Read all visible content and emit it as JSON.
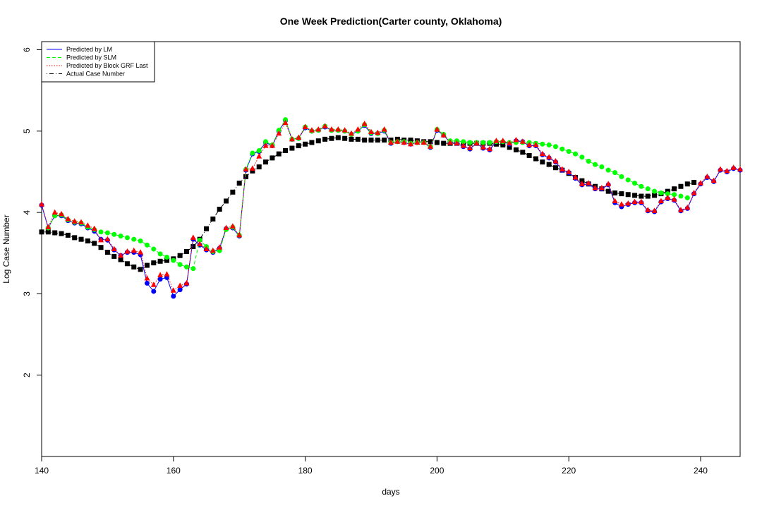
{
  "chart_data": {
    "type": "line",
    "title": "One Week Prediction(Carter county, Oklahoma)",
    "xlabel": "days",
    "ylabel": "Log Case Number",
    "xlim": [
      140,
      246
    ],
    "ylim": [
      1.0,
      6.1
    ],
    "xticks": [
      140,
      160,
      180,
      200,
      220,
      240
    ],
    "yticks": [
      2,
      3,
      4,
      5,
      6
    ],
    "grid": false,
    "legend_position": "top-left",
    "legend": [
      {
        "label": "Predicted by LM",
        "color": "#0000ff",
        "dash": "solid"
      },
      {
        "label": "Predicted by SLM",
        "color": "#00ff00",
        "dash": "dashed"
      },
      {
        "label": "Predicted by Block GRF Last",
        "color": "#ff0000",
        "dash": "dotted"
      },
      {
        "label": "Actual Case Number",
        "color": "#000000",
        "dash": "dotdash"
      }
    ],
    "series": [
      {
        "name": "Actual Case Number",
        "color": "#000000",
        "marker": "square",
        "x": [
          140,
          141,
          142,
          143,
          144,
          145,
          146,
          147,
          148,
          149,
          150,
          151,
          152,
          153,
          154,
          155,
          156,
          157,
          158,
          159,
          160,
          161,
          162,
          163,
          164,
          165,
          166,
          167,
          168,
          169,
          170,
          171,
          172,
          173,
          174,
          175,
          176,
          177,
          178,
          179,
          180,
          181,
          182,
          183,
          184,
          185,
          186,
          187,
          188,
          189,
          190,
          191,
          192,
          193,
          194,
          195,
          196,
          197,
          198,
          199,
          200,
          201,
          202,
          203,
          204,
          205,
          206,
          207,
          208,
          209,
          210,
          211,
          212,
          213,
          214,
          215,
          216,
          217,
          218,
          219,
          220,
          221,
          222,
          223,
          224,
          225,
          226,
          227,
          228,
          229,
          230,
          231,
          232,
          233,
          234,
          235,
          236,
          237,
          238,
          239
        ],
        "y": [
          3.76,
          3.76,
          3.75,
          3.74,
          3.72,
          3.69,
          3.67,
          3.65,
          3.62,
          3.57,
          3.51,
          3.46,
          3.42,
          3.37,
          3.33,
          3.3,
          3.35,
          3.38,
          3.4,
          3.41,
          3.43,
          3.47,
          3.52,
          3.58,
          3.67,
          3.8,
          3.92,
          4.04,
          4.14,
          4.25,
          4.36,
          4.44,
          4.51,
          4.56,
          4.62,
          4.67,
          4.72,
          4.76,
          4.79,
          4.82,
          4.84,
          4.86,
          4.88,
          4.9,
          4.91,
          4.92,
          4.91,
          4.9,
          4.9,
          4.89,
          4.89,
          4.89,
          4.89,
          4.89,
          4.9,
          4.89,
          4.89,
          4.88,
          4.87,
          4.87,
          4.86,
          4.85,
          4.85,
          4.85,
          4.85,
          4.85,
          4.85,
          4.85,
          4.85,
          4.84,
          4.83,
          4.8,
          4.77,
          4.74,
          4.7,
          4.66,
          4.62,
          4.59,
          4.55,
          4.52,
          4.48,
          4.43,
          4.39,
          4.35,
          4.32,
          4.29,
          4.26,
          4.24,
          4.23,
          4.22,
          4.21,
          4.2,
          4.2,
          4.21,
          4.23,
          4.26,
          4.29,
          4.32,
          4.35,
          4.37
        ]
      },
      {
        "name": "Predicted by LM",
        "color": "#0000ff",
        "marker": "circle",
        "x": [
          140,
          141,
          142,
          143,
          144,
          145,
          146,
          147,
          148,
          149,
          150,
          151,
          152,
          153,
          154,
          155,
          156,
          157,
          158,
          159,
          160,
          161,
          162,
          163,
          164,
          165,
          166,
          167,
          168,
          169,
          170,
          171,
          172,
          173,
          174,
          175,
          176,
          177,
          178,
          179,
          180,
          181,
          182,
          183,
          184,
          185,
          186,
          187,
          188,
          189,
          190,
          191,
          192,
          193,
          194,
          195,
          196,
          197,
          198,
          199,
          200,
          201,
          202,
          203,
          204,
          205,
          206,
          207,
          208,
          209,
          210,
          211,
          212,
          213,
          214,
          215,
          216,
          217,
          218,
          219,
          220,
          221,
          222,
          223,
          224,
          225,
          226,
          227,
          228,
          229,
          230,
          231,
          232,
          233,
          234,
          235,
          236,
          237,
          238,
          239,
          240,
          241,
          242,
          243,
          244,
          245,
          246
        ],
        "y": [
          4.09,
          3.81,
          3.96,
          3.96,
          3.9,
          3.87,
          3.86,
          3.81,
          3.77,
          3.67,
          3.66,
          3.54,
          3.47,
          3.51,
          3.51,
          3.48,
          3.13,
          3.03,
          3.18,
          3.2,
          2.97,
          3.05,
          3.12,
          3.67,
          3.6,
          3.54,
          3.51,
          3.56,
          3.8,
          3.81,
          3.71,
          4.52,
          4.72,
          4.75,
          4.86,
          4.82,
          5.0,
          5.13,
          4.9,
          4.91,
          5.04,
          5.0,
          5.01,
          5.05,
          5.01,
          5.01,
          5.0,
          4.96,
          5.0,
          5.07,
          4.97,
          4.97,
          5.0,
          4.85,
          4.87,
          4.86,
          4.84,
          4.86,
          4.86,
          4.8,
          5.01,
          4.95,
          4.86,
          4.85,
          4.81,
          4.78,
          4.85,
          4.79,
          4.77,
          4.87,
          4.87,
          4.84,
          4.88,
          4.87,
          4.82,
          4.82,
          4.71,
          4.67,
          4.62,
          4.52,
          4.49,
          4.42,
          4.34,
          4.35,
          4.29,
          4.29,
          4.34,
          4.12,
          4.07,
          4.1,
          4.12,
          4.12,
          4.02,
          4.01,
          4.13,
          4.17,
          4.15,
          4.02,
          4.05,
          4.23,
          4.35,
          4.43,
          4.38,
          4.52,
          4.5,
          4.54,
          4.52
        ]
      },
      {
        "name": "Predicted by SLM",
        "color": "#00ff00",
        "marker": "circle",
        "x": [
          141,
          142,
          143,
          144,
          145,
          146,
          147,
          148,
          149,
          150,
          151,
          152,
          153,
          154,
          155,
          156,
          157,
          158,
          159,
          160,
          161,
          162,
          163,
          164,
          165,
          166,
          167,
          168,
          169,
          170,
          171,
          172,
          173,
          174,
          175,
          176,
          177,
          178,
          179,
          180,
          181,
          182,
          183,
          184,
          185,
          186,
          187,
          188,
          189,
          190,
          191,
          192,
          193,
          194,
          195,
          196,
          197,
          198,
          199,
          200,
          201,
          202,
          203,
          204,
          205,
          206,
          207,
          208,
          209,
          210,
          211,
          212,
          213,
          214,
          215,
          216,
          217,
          218,
          219,
          220,
          221,
          222,
          223,
          224,
          225,
          226,
          227,
          228,
          229,
          230,
          231,
          232,
          233,
          234,
          235,
          236,
          237,
          238
        ],
        "y": [
          3.81,
          3.96,
          3.97,
          3.91,
          3.88,
          3.87,
          3.82,
          3.79,
          3.76,
          3.75,
          3.73,
          3.71,
          3.69,
          3.67,
          3.65,
          3.6,
          3.55,
          3.49,
          3.45,
          3.41,
          3.36,
          3.33,
          3.31,
          3.66,
          3.58,
          3.52,
          3.53,
          3.79,
          3.82,
          3.72,
          4.53,
          4.73,
          4.76,
          4.87,
          4.83,
          5.01,
          5.14,
          4.9,
          4.91,
          5.05,
          5.0,
          5.01,
          5.06,
          5.01,
          5.01,
          5.0,
          4.96,
          5.0,
          5.08,
          4.98,
          4.97,
          5.01,
          4.86,
          4.87,
          4.87,
          4.85,
          4.86,
          4.86,
          4.81,
          5.02,
          4.96,
          4.88,
          4.88,
          4.87,
          4.86,
          4.86,
          4.86,
          4.86,
          4.87,
          4.87,
          4.86,
          4.86,
          4.86,
          4.86,
          4.85,
          4.84,
          4.83,
          4.81,
          4.78,
          4.75,
          4.72,
          4.68,
          4.63,
          4.59,
          4.56,
          4.52,
          4.49,
          4.44,
          4.4,
          4.36,
          4.32,
          4.29,
          4.26,
          4.24,
          4.23,
          4.22,
          4.2,
          4.18
        ]
      },
      {
        "name": "Predicted by Block GRF Last",
        "color": "#ff0000",
        "marker": "triangle",
        "x": [
          140,
          141,
          142,
          143,
          144,
          145,
          146,
          147,
          148,
          149,
          150,
          151,
          152,
          153,
          154,
          155,
          156,
          157,
          158,
          159,
          160,
          161,
          162,
          163,
          164,
          165,
          166,
          167,
          168,
          169,
          170,
          171,
          172,
          173,
          174,
          175,
          176,
          177,
          178,
          179,
          180,
          181,
          182,
          183,
          184,
          185,
          186,
          187,
          188,
          189,
          190,
          191,
          192,
          193,
          194,
          195,
          196,
          197,
          198,
          199,
          200,
          201,
          202,
          203,
          204,
          205,
          206,
          207,
          208,
          209,
          210,
          211,
          212,
          213,
          214,
          215,
          216,
          217,
          218,
          219,
          220,
          221,
          222,
          223,
          224,
          225,
          226,
          227,
          228,
          229,
          230,
          231,
          232,
          233,
          234,
          235,
          236,
          237,
          238,
          239,
          240,
          241,
          242,
          243,
          244,
          245,
          246
        ],
        "y": [
          4.1,
          3.82,
          4.0,
          3.98,
          3.92,
          3.89,
          3.88,
          3.84,
          3.8,
          3.66,
          3.67,
          3.55,
          3.47,
          3.52,
          3.53,
          3.51,
          3.19,
          3.11,
          3.23,
          3.24,
          3.04,
          3.1,
          3.13,
          3.69,
          3.61,
          3.55,
          3.53,
          3.57,
          3.81,
          3.83,
          3.72,
          4.53,
          4.54,
          4.69,
          4.82,
          4.82,
          4.97,
          5.1,
          4.9,
          4.92,
          5.05,
          5.01,
          5.02,
          5.06,
          5.02,
          5.02,
          5.01,
          4.97,
          5.02,
          5.09,
          4.99,
          4.98,
          5.02,
          4.86,
          4.87,
          4.86,
          4.84,
          4.86,
          4.86,
          4.81,
          5.02,
          4.95,
          4.86,
          4.85,
          4.82,
          4.79,
          4.85,
          4.8,
          4.78,
          4.88,
          4.88,
          4.85,
          4.89,
          4.87,
          4.83,
          4.83,
          4.72,
          4.68,
          4.63,
          4.53,
          4.5,
          4.43,
          4.35,
          4.36,
          4.3,
          4.3,
          4.35,
          4.14,
          4.1,
          4.11,
          4.13,
          4.13,
          4.03,
          4.02,
          4.14,
          4.18,
          4.16,
          4.03,
          4.06,
          4.24,
          4.36,
          4.44,
          4.39,
          4.53,
          4.51,
          4.55,
          4.53
        ]
      }
    ]
  }
}
